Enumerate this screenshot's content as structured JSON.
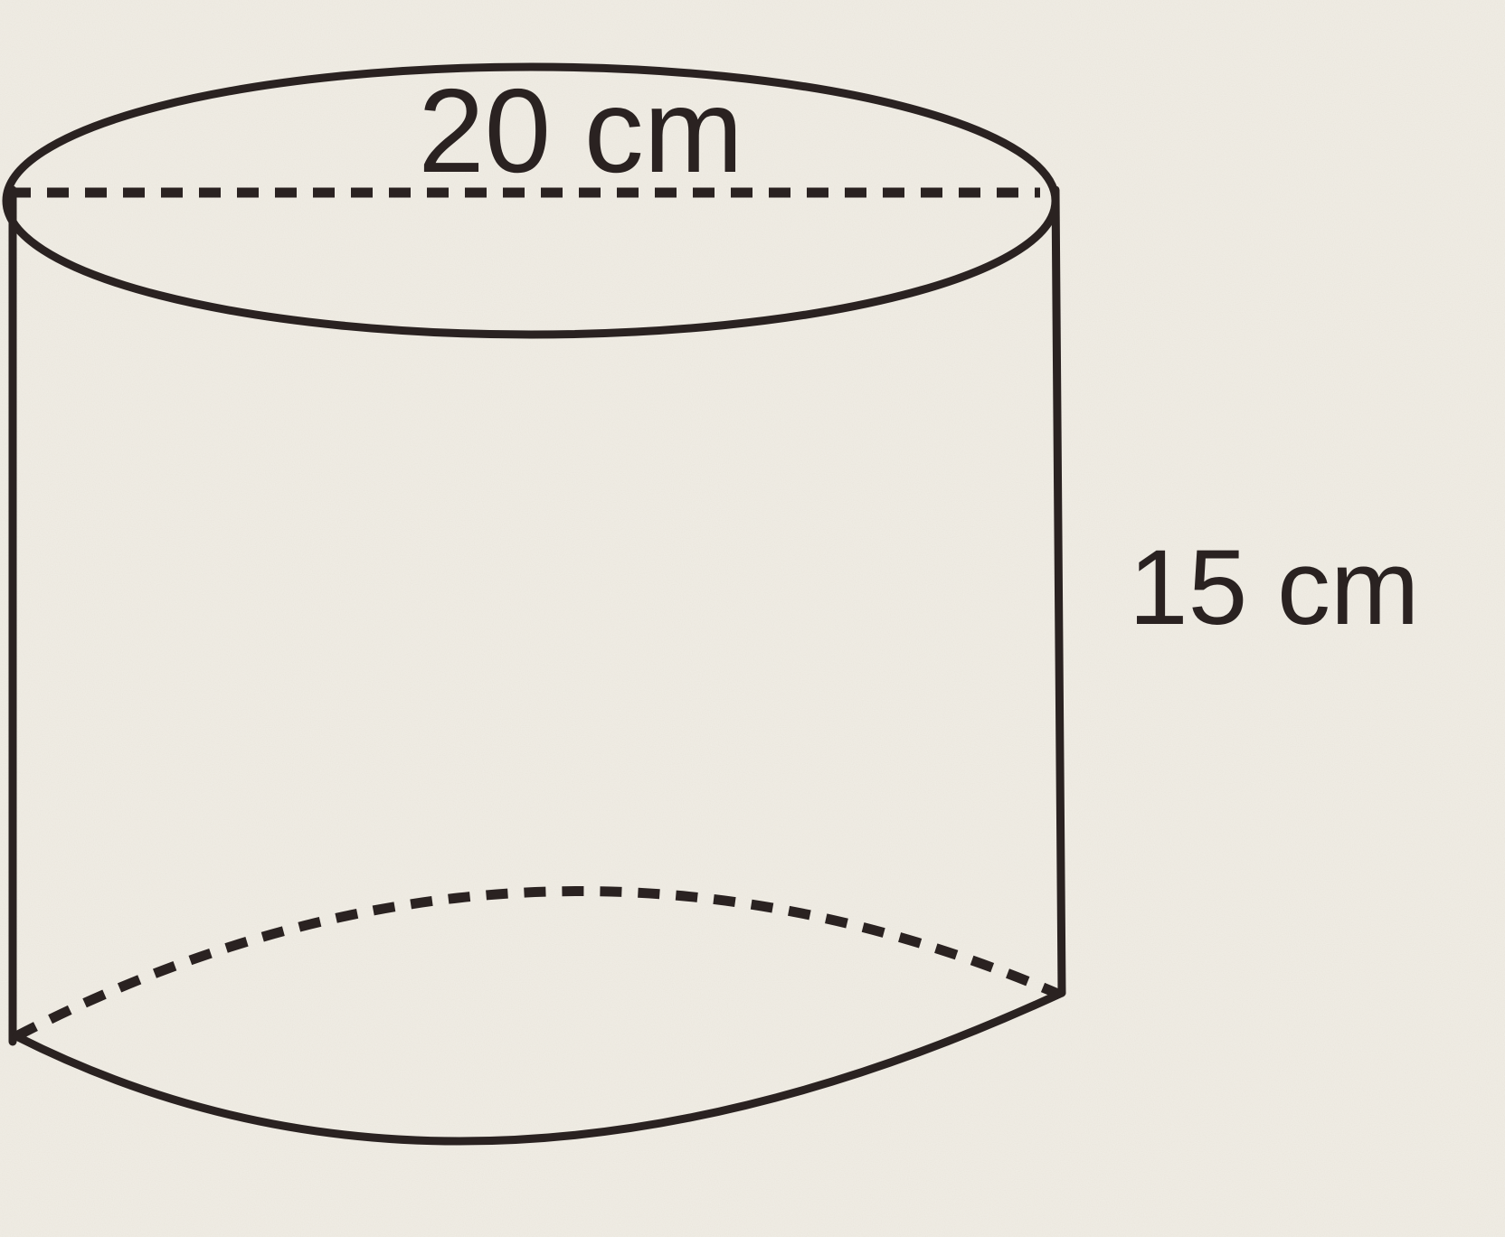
{
  "figure": {
    "shape": "cylinder",
    "diameter_label": "20 cm",
    "height_label": "15 cm",
    "line_color": "#2a2221",
    "paper_color": "#f1eee6"
  }
}
